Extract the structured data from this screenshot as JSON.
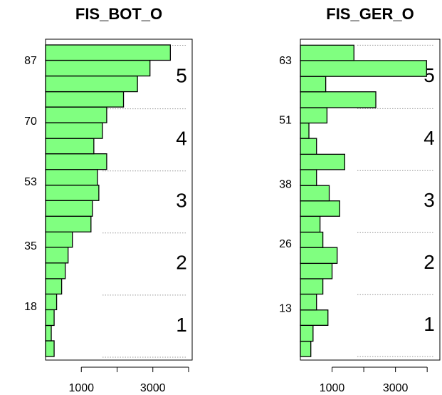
{
  "chart_data": [
    {
      "type": "histogram-horizontal",
      "title": "FIS_BOT_O",
      "color": "#80ff80",
      "bins": [
        4.2,
        8.6,
        12.9,
        17.3,
        21.7,
        26.0,
        30.4,
        34.8,
        39.1,
        43.5,
        47.9,
        52.2,
        56.6,
        61.0,
        65.3,
        69.7,
        74.1,
        78.4,
        82.8,
        87.2,
        91.5
      ],
      "values": [
        240,
        160,
        240,
        310,
        450,
        550,
        630,
        750,
        1270,
        1310,
        1490,
        1450,
        1710,
        1350,
        1590,
        1710,
        2180,
        2570,
        2920,
        3490
      ],
      "xlim": [
        0,
        4100
      ],
      "xticks": [
        1000,
        3000
      ],
      "xminor_ticks": [
        2000,
        4000
      ],
      "ylim": [
        3.2,
        93.1
      ],
      "yticks": [
        18,
        35,
        53,
        70,
        87
      ],
      "zone_edges": [
        4.0,
        21.4,
        38.8,
        56.2,
        73.6,
        91.4
      ],
      "zone_labels": [
        "1",
        "2",
        "3",
        "4",
        "5"
      ]
    },
    {
      "type": "histogram-horizontal",
      "title": "FIS_GER_O",
      "color": "#80ff80",
      "bins": [
        3.4,
        6.5,
        9.7,
        12.8,
        16.0,
        19.1,
        22.2,
        25.4,
        28.5,
        31.7,
        34.8,
        37.9,
        41.1,
        44.2,
        47.4,
        50.5,
        53.6,
        56.8,
        59.9,
        63.1,
        66.2
      ],
      "values": [
        330,
        400,
        870,
        510,
        710,
        1000,
        1160,
        710,
        620,
        1240,
        910,
        510,
        1400,
        510,
        270,
        840,
        2380,
        800,
        3980,
        1690
      ],
      "xlim": [
        0,
        4400
      ],
      "xticks": [
        1000,
        3000
      ],
      "xminor_ticks": [
        2000,
        4000
      ],
      "ylim": [
        2.7,
        67.4
      ],
      "yticks": [
        13,
        26,
        38,
        51,
        63
      ],
      "zone_edges": [
        3.4,
        15.9,
        28.4,
        40.9,
        53.4,
        66.2
      ],
      "zone_labels": [
        "1",
        "2",
        "3",
        "4",
        "5"
      ]
    }
  ]
}
